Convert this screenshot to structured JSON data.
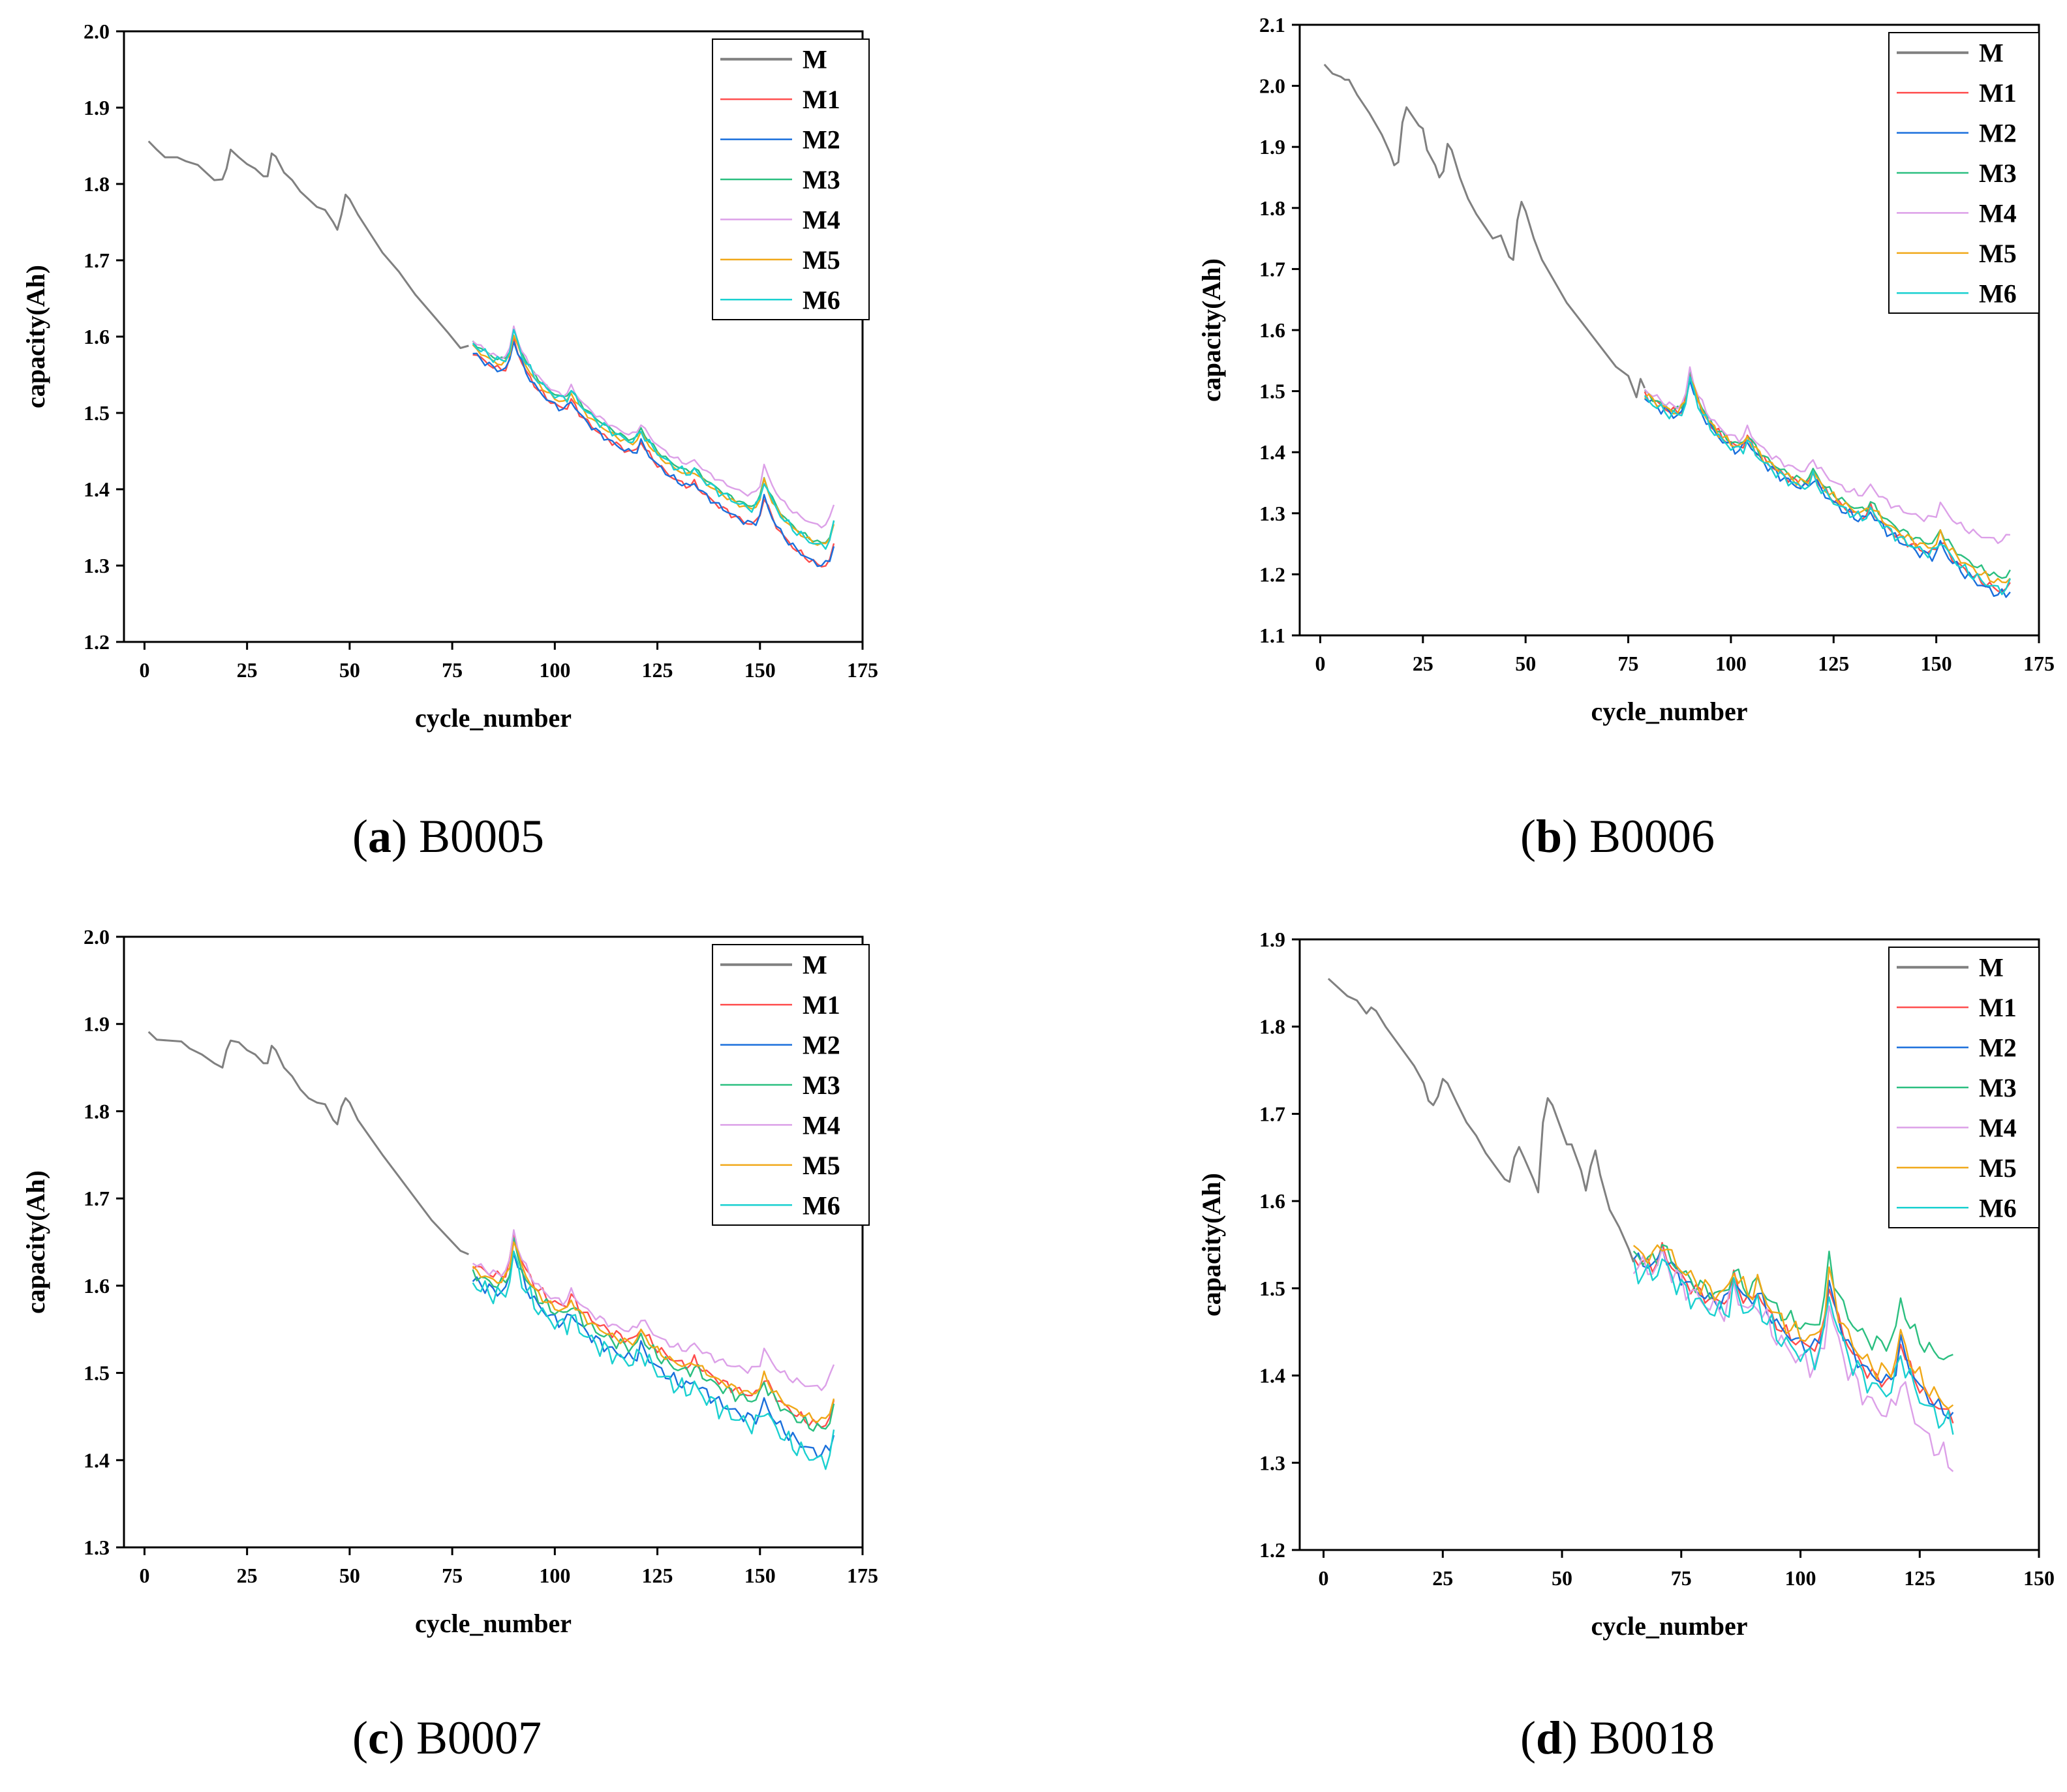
{
  "series_colors": {
    "M": "#808080",
    "M1": "#ff4d4d",
    "M2": "#1a6fdc",
    "M3": "#2bbf80",
    "M4": "#dca0e8",
    "M5": "#f0a818",
    "M6": "#1ad0d0"
  },
  "chart_data": [
    {
      "type": "line",
      "caption_letter": "a",
      "caption_name": "B0005",
      "xlabel": "cycle_number",
      "ylabel": "capacity(Ah)",
      "xlim": [
        -5,
        175
      ],
      "ylim": [
        1.2,
        2.0
      ],
      "xticks": [
        0,
        25,
        50,
        75,
        100,
        125,
        150,
        175
      ],
      "yticks": [
        1.2,
        1.3,
        1.4,
        1.5,
        1.6,
        1.7,
        1.8,
        1.9,
        2.0
      ],
      "xtick_labels": [
        "0",
        "25",
        "50",
        "75",
        "100",
        "125",
        "150",
        "175"
      ],
      "ytick_labels": [
        "1.2",
        "1.3",
        "1.4",
        "1.5",
        "1.6",
        "1.7",
        "1.8",
        "1.9",
        "2.0"
      ],
      "legend": [
        "M",
        "M1",
        "M2",
        "M3",
        "M4",
        "M5",
        "M6"
      ],
      "M_points": [
        [
          1,
          1.856
        ],
        [
          3,
          1.845
        ],
        [
          5,
          1.835
        ],
        [
          8,
          1.835
        ],
        [
          10,
          1.83
        ],
        [
          13,
          1.825
        ],
        [
          15,
          1.815
        ],
        [
          17,
          1.805
        ],
        [
          19,
          1.806
        ],
        [
          20,
          1.82
        ],
        [
          21,
          1.845
        ],
        [
          23,
          1.835
        ],
        [
          25,
          1.826
        ],
        [
          27,
          1.82
        ],
        [
          29,
          1.81
        ],
        [
          30,
          1.81
        ],
        [
          31,
          1.84
        ],
        [
          32,
          1.836
        ],
        [
          34,
          1.815
        ],
        [
          36,
          1.805
        ],
        [
          38,
          1.79
        ],
        [
          40,
          1.78
        ],
        [
          42,
          1.77
        ],
        [
          44,
          1.766
        ],
        [
          46,
          1.75
        ],
        [
          47,
          1.74
        ],
        [
          48,
          1.76
        ],
        [
          49,
          1.786
        ],
        [
          50,
          1.78
        ],
        [
          52,
          1.76
        ],
        [
          55,
          1.735
        ],
        [
          58,
          1.71
        ],
        [
          62,
          1.685
        ],
        [
          66,
          1.655
        ],
        [
          70,
          1.63
        ],
        [
          74,
          1.605
        ],
        [
          77,
          1.585
        ],
        [
          79,
          1.588
        ]
      ],
      "predictions": {
        "start": 80,
        "end": 168,
        "base_start": 1.585,
        "base_end": 1.303,
        "peaks": [
          [
            90,
            0.055
          ],
          [
            104,
            0.022
          ],
          [
            121,
            0.025
          ],
          [
            134,
            0.012
          ],
          [
            151,
            0.05
          ],
          [
            168,
            0.04
          ]
        ],
        "offsets": [
          -0.005,
          -0.006,
          0.008,
          0.01,
          0.002,
          0.006
        ],
        "drifts": [
          -0.012,
          -0.01,
          0.006,
          0.028,
          0.01,
          0.004
        ],
        "noise": [
          0.003,
          0.003,
          0.002,
          0.002,
          0.002,
          0.004
        ]
      }
    },
    {
      "type": "line",
      "caption_letter": "b",
      "caption_name": "B0006",
      "xlabel": "cycle_number",
      "ylabel": "capacity(Ah)",
      "xlim": [
        -5,
        175
      ],
      "ylim": [
        1.1,
        2.1
      ],
      "xticks": [
        0,
        25,
        50,
        75,
        100,
        125,
        150,
        175
      ],
      "yticks": [
        1.1,
        1.2,
        1.3,
        1.4,
        1.5,
        1.6,
        1.7,
        1.8,
        1.9,
        2.0,
        2.1
      ],
      "xtick_labels": [
        "0",
        "25",
        "50",
        "75",
        "100",
        "125",
        "150",
        "175"
      ],
      "ytick_labels": [
        "1.1",
        "1.2",
        "1.3",
        "1.4",
        "1.5",
        "1.6",
        "1.7",
        "1.8",
        "1.9",
        "2.0",
        "2.1"
      ],
      "legend": [
        "M",
        "M1",
        "M2",
        "M3",
        "M4",
        "M5",
        "M6"
      ],
      "M_points": [
        [
          1,
          2.035
        ],
        [
          3,
          2.02
        ],
        [
          5,
          2.015
        ],
        [
          6,
          2.01
        ],
        [
          7,
          2.01
        ],
        [
          9,
          1.985
        ],
        [
          12,
          1.955
        ],
        [
          15,
          1.92
        ],
        [
          17,
          1.89
        ],
        [
          18,
          1.87
        ],
        [
          19,
          1.875
        ],
        [
          20,
          1.94
        ],
        [
          21,
          1.965
        ],
        [
          22,
          1.955
        ],
        [
          24,
          1.935
        ],
        [
          25,
          1.93
        ],
        [
          26,
          1.895
        ],
        [
          28,
          1.87
        ],
        [
          29,
          1.85
        ],
        [
          30,
          1.86
        ],
        [
          31,
          1.905
        ],
        [
          32,
          1.895
        ],
        [
          34,
          1.85
        ],
        [
          36,
          1.815
        ],
        [
          38,
          1.79
        ],
        [
          40,
          1.77
        ],
        [
          42,
          1.75
        ],
        [
          44,
          1.755
        ],
        [
          46,
          1.72
        ],
        [
          47,
          1.715
        ],
        [
          48,
          1.78
        ],
        [
          49,
          1.81
        ],
        [
          50,
          1.795
        ],
        [
          52,
          1.75
        ],
        [
          54,
          1.715
        ],
        [
          57,
          1.68
        ],
        [
          60,
          1.645
        ],
        [
          64,
          1.61
        ],
        [
          68,
          1.575
        ],
        [
          72,
          1.54
        ],
        [
          75,
          1.525
        ],
        [
          77,
          1.49
        ],
        [
          78,
          1.52
        ],
        [
          79,
          1.505
        ]
      ],
      "predictions": {
        "start": 79,
        "end": 168,
        "base_start": 1.495,
        "base_end": 1.17,
        "peaks": [
          [
            90,
            0.08
          ],
          [
            104,
            0.03
          ],
          [
            120,
            0.03
          ],
          [
            134,
            0.025
          ],
          [
            151,
            0.035
          ],
          [
            168,
            0.02
          ]
        ],
        "offsets": [
          0.0,
          -0.005,
          0.003,
          0.008,
          0.0,
          -0.006
        ],
        "drifts": [
          -0.008,
          -0.01,
          0.012,
          0.07,
          0.006,
          0.0
        ],
        "noise": [
          0.005,
          0.006,
          0.004,
          0.004,
          0.005,
          0.006
        ]
      }
    },
    {
      "type": "line",
      "caption_letter": "c",
      "caption_name": "B0007",
      "xlabel": "cycle_number",
      "ylabel": "capacity(Ah)",
      "xlim": [
        -5,
        175
      ],
      "ylim": [
        1.3,
        2.0
      ],
      "xticks": [
        0,
        25,
        50,
        75,
        100,
        125,
        150,
        175
      ],
      "yticks": [
        1.3,
        1.4,
        1.5,
        1.6,
        1.7,
        1.8,
        1.9,
        2.0
      ],
      "xtick_labels": [
        "0",
        "25",
        "50",
        "75",
        "100",
        "125",
        "150",
        "175"
      ],
      "ytick_labels": [
        "1.3",
        "1.4",
        "1.5",
        "1.6",
        "1.7",
        "1.8",
        "1.9",
        "2.0"
      ],
      "legend": [
        "M",
        "M1",
        "M2",
        "M3",
        "M4",
        "M5",
        "M6"
      ],
      "M_points": [
        [
          1,
          1.891
        ],
        [
          3,
          1.882
        ],
        [
          6,
          1.881
        ],
        [
          9,
          1.88
        ],
        [
          11,
          1.872
        ],
        [
          14,
          1.865
        ],
        [
          17,
          1.855
        ],
        [
          19,
          1.85
        ],
        [
          20,
          1.87
        ],
        [
          21,
          1.881
        ],
        [
          23,
          1.879
        ],
        [
          25,
          1.87
        ],
        [
          27,
          1.865
        ],
        [
          29,
          1.855
        ],
        [
          30,
          1.855
        ],
        [
          31,
          1.875
        ],
        [
          32,
          1.87
        ],
        [
          34,
          1.85
        ],
        [
          36,
          1.84
        ],
        [
          38,
          1.825
        ],
        [
          40,
          1.815
        ],
        [
          42,
          1.81
        ],
        [
          44,
          1.808
        ],
        [
          46,
          1.79
        ],
        [
          47,
          1.785
        ],
        [
          48,
          1.805
        ],
        [
          49,
          1.815
        ],
        [
          50,
          1.81
        ],
        [
          52,
          1.79
        ],
        [
          55,
          1.77
        ],
        [
          58,
          1.75
        ],
        [
          62,
          1.725
        ],
        [
          66,
          1.7
        ],
        [
          70,
          1.675
        ],
        [
          74,
          1.655
        ],
        [
          77,
          1.64
        ],
        [
          79,
          1.636
        ]
      ],
      "predictions": {
        "start": 80,
        "end": 168,
        "base_start": 1.615,
        "base_end": 1.425,
        "peaks": [
          [
            90,
            0.06
          ],
          [
            104,
            0.02
          ],
          [
            121,
            0.022
          ],
          [
            134,
            0.012
          ],
          [
            151,
            0.03
          ],
          [
            168,
            0.035
          ]
        ],
        "offsets": [
          0.01,
          -0.008,
          0.0,
          0.012,
          0.004,
          -0.012
        ],
        "drifts": [
          -0.005,
          -0.02,
          0.002,
          0.04,
          0.008,
          -0.025
        ],
        "noise": [
          0.004,
          0.005,
          0.005,
          0.003,
          0.003,
          0.008
        ]
      }
    },
    {
      "type": "line",
      "caption_letter": "d",
      "caption_name": "B0018",
      "xlabel": "cycle_number",
      "ylabel": "capacity(Ah)",
      "xlim": [
        -5,
        150
      ],
      "ylim": [
        1.2,
        1.9
      ],
      "xticks": [
        0,
        25,
        50,
        75,
        100,
        125,
        150
      ],
      "yticks": [
        1.2,
        1.3,
        1.4,
        1.5,
        1.6,
        1.7,
        1.8,
        1.9
      ],
      "xtick_labels": [
        "0",
        "25",
        "50",
        "75",
        "100",
        "125",
        "150"
      ],
      "ytick_labels": [
        "1.2",
        "1.3",
        "1.4",
        "1.5",
        "1.6",
        "1.7",
        "1.8",
        "1.9"
      ],
      "legend": [
        "M",
        "M1",
        "M2",
        "M3",
        "M4",
        "M5",
        "M6"
      ],
      "M_points": [
        [
          1,
          1.855
        ],
        [
          3,
          1.845
        ],
        [
          5,
          1.835
        ],
        [
          7,
          1.83
        ],
        [
          9,
          1.815
        ],
        [
          10,
          1.822
        ],
        [
          11,
          1.818
        ],
        [
          13,
          1.8
        ],
        [
          15,
          1.785
        ],
        [
          17,
          1.77
        ],
        [
          19,
          1.755
        ],
        [
          21,
          1.735
        ],
        [
          22,
          1.715
        ],
        [
          23,
          1.71
        ],
        [
          24,
          1.72
        ],
        [
          25,
          1.74
        ],
        [
          26,
          1.735
        ],
        [
          28,
          1.712
        ],
        [
          30,
          1.69
        ],
        [
          32,
          1.675
        ],
        [
          34,
          1.655
        ],
        [
          36,
          1.64
        ],
        [
          38,
          1.625
        ],
        [
          39,
          1.622
        ],
        [
          40,
          1.65
        ],
        [
          41,
          1.662
        ],
        [
          42,
          1.65
        ],
        [
          44,
          1.625
        ],
        [
          45,
          1.61
        ],
        [
          46,
          1.69
        ],
        [
          47,
          1.718
        ],
        [
          48,
          1.71
        ],
        [
          50,
          1.68
        ],
        [
          51,
          1.665
        ],
        [
          52,
          1.665
        ],
        [
          54,
          1.635
        ],
        [
          55,
          1.612
        ],
        [
          56,
          1.64
        ],
        [
          57,
          1.658
        ],
        [
          58,
          1.63
        ],
        [
          60,
          1.59
        ],
        [
          62,
          1.57
        ],
        [
          64,
          1.545
        ],
        [
          65,
          1.53
        ]
      ],
      "predictions": {
        "start": 65,
        "end": 132,
        "base_start": 1.535,
        "base_end": 1.35,
        "peaks": [
          [
            71,
            0.03
          ],
          [
            86,
            0.04
          ],
          [
            91,
            0.03
          ],
          [
            106,
            0.09
          ],
          [
            121,
            0.06
          ],
          [
            132,
            0.0
          ]
        ],
        "offsets": [
          0.0,
          0.0,
          0.005,
          -0.005,
          0.01,
          -0.012
        ],
        "drifts": [
          0.0,
          0.0,
          0.06,
          -0.05,
          0.0,
          0.0
        ],
        "noise": [
          0.006,
          0.006,
          0.007,
          0.01,
          0.008,
          0.01
        ]
      }
    }
  ]
}
